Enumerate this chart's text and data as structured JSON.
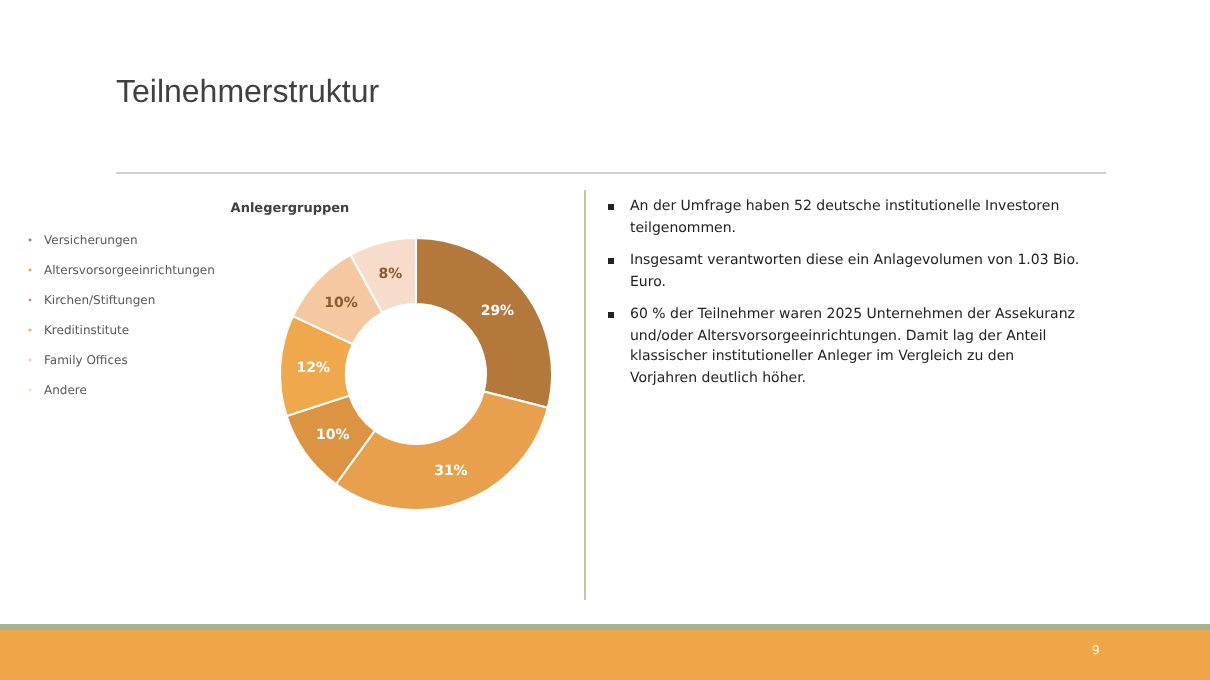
{
  "chart_data": {
    "type": "donut",
    "title": "Teilnehmerstruktur",
    "subtitle": "Anlegergruppen",
    "categories": [
      "Versicherungen",
      "Altersvorsorgeeinrichtungen",
      "Kirchen/Stiftungen",
      "Kreditinstitute",
      "Family Offices",
      "Andere"
    ],
    "values": [
      29,
      31,
      10,
      12,
      10,
      8
    ],
    "colors": [
      "#b3783a",
      "#e9a04c",
      "#dc9443",
      "#f0a84c",
      "#f5c8a2",
      "#f8dccb"
    ],
    "value_labels": [
      "29%",
      "31%",
      "10%",
      "12%",
      "10%",
      "8%"
    ],
    "legend": "left",
    "annotations": [
      "An der Umfrage haben 52 deutsche institutionelle Investoren teilgenommen.",
      "Insgesamt verantworten diese ein Anlagevolumen von 1.03 Bio. Euro.",
      "60 % der Teilnehmer waren 2025 Unternehmen der Assekuranz und/oder Altersvorsorgeeinrichtungen. Damit lag der Anteil klassischer institutioneller Anleger im Vergleich zu den Vorjahren deutlich höher.",
      "9"
    ]
  }
}
